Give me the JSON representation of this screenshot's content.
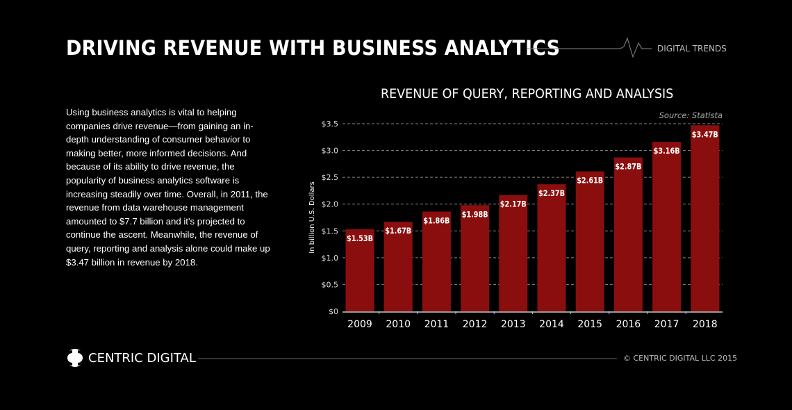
{
  "header": {
    "title": "DRIVING REVENUE WITH BUSINESS ANALYTICS",
    "tag": "DIGITAL TRENDS"
  },
  "body_text": "Using business analytics is vital to helping companies drive revenue—from gaining an in-depth understanding of consumer behavior to making better, more informed decisions. And because of its ability to drive revenue, the popularity of business analytics software is increasing steadily over time. Overall, in 2011, the revenue from data warehouse management amounted to $7.7 billion and it's projected to continue the ascent. Meanwhile, the revenue of query, reporting and analysis alone could make up $3.47 billion in revenue by 2018.",
  "footer": {
    "brand": "CENTRIC DIGITAL",
    "copyright": "© CENTRIC DIGITAL LLC 2015"
  },
  "colors": {
    "bar": "#8b0e0e",
    "background": "#000000",
    "grid": "#888888"
  },
  "chart_data": {
    "type": "bar",
    "title": "REVENUE OF QUERY, REPORTING AND ANALYSIS",
    "source": "Source:  Statista",
    "ylabel": "In billion U.S. Dollars",
    "xlabel": "",
    "categories": [
      "2009",
      "2010",
      "2011",
      "2012",
      "2013",
      "2014",
      "2015",
      "2016",
      "2017",
      "2018"
    ],
    "values": [
      1.53,
      1.67,
      1.86,
      1.98,
      2.17,
      2.37,
      2.61,
      2.87,
      3.16,
      3.47
    ],
    "data_labels": [
      "$1.53B",
      "$1.67B",
      "$1.86B",
      "$1.98B",
      "$2.17B",
      "$2.37B",
      "$2.61B",
      "$2.87B",
      "$3.16B",
      "$3.47B"
    ],
    "yticks": [
      0,
      0.5,
      1.0,
      1.5,
      2.0,
      2.5,
      3.0,
      3.5
    ],
    "ytick_labels": [
      "$0",
      "$0.5",
      "$1.0",
      "$1.5",
      "$2.0",
      "$2.5",
      "$3.0",
      "$3.5"
    ],
    "ylim": [
      0,
      3.5
    ],
    "grid": true
  }
}
